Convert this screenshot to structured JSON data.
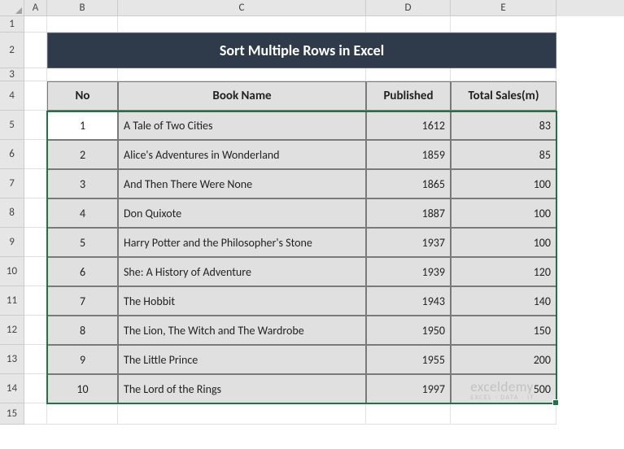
{
  "columns": {
    "A": "A",
    "B": "B",
    "C": "C",
    "D": "D",
    "E": "E"
  },
  "rows": {
    "r1": "1",
    "r2": "2",
    "r3": "3",
    "r4": "4",
    "r5": "5",
    "r6": "6",
    "r7": "7",
    "r8": "8",
    "r9": "9",
    "r10": "10",
    "r11": "11",
    "r12": "12",
    "r13": "13",
    "r14": "14",
    "r15": "15"
  },
  "title": "Sort Multiple Rows in Excel",
  "headers": {
    "no": "No",
    "book": "Book Name",
    "published": "Published",
    "sales": "Total Sales(m)"
  },
  "data": [
    {
      "no": "1",
      "name": "A Tale of Two Cities",
      "pub": "1612",
      "sales": "83"
    },
    {
      "no": "2",
      "name": "Alice's Adventures in Wonderland",
      "pub": "1859",
      "sales": "85"
    },
    {
      "no": "3",
      "name": "And Then There Were None",
      "pub": "1865",
      "sales": "100"
    },
    {
      "no": "4",
      "name": "Don Quixote",
      "pub": "1887",
      "sales": "100"
    },
    {
      "no": "5",
      "name": "Harry Potter and the Philosopher's Stone",
      "pub": "1937",
      "sales": "100"
    },
    {
      "no": "6",
      "name": "She: A History of Adventure",
      "pub": "1939",
      "sales": "120"
    },
    {
      "no": "7",
      "name": "The Hobbit",
      "pub": "1943",
      "sales": "140"
    },
    {
      "no": "8",
      "name": "The Lion, The Witch and The Wardrobe",
      "pub": "1950",
      "sales": "150"
    },
    {
      "no": "9",
      "name": "The Little Prince",
      "pub": "1955",
      "sales": "200"
    },
    {
      "no": "10",
      "name": "The Lord of the Rings",
      "pub": "1997",
      "sales": "500"
    }
  ],
  "styling": {
    "title_bg": "#2f3a4a",
    "title_fg": "#ffffff",
    "header_bg": "#e0e0e0",
    "data_bg": "#e0e0e0",
    "selected_bg": "#ffffff",
    "border_color": "#7a7a7a",
    "grid_border": "#e0e0e0",
    "rowcol_bg": "#e6e6e6",
    "selection_border": "#217346",
    "col_widths": {
      "A": 28,
      "B": 87,
      "C": 305,
      "D": 104,
      "E": 130
    },
    "row_heights": {
      "default": 36,
      "r1": 20,
      "r2": 44,
      "r3": 16,
      "r4": 36,
      "r15": 26
    }
  },
  "watermark": {
    "title": "exceldemy",
    "sub": "EXCEL · DATA · IT"
  }
}
